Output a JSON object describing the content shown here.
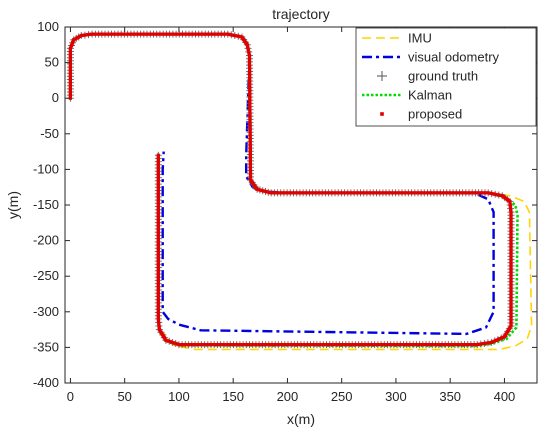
{
  "chart_data": {
    "type": "line",
    "title": "trajectory",
    "xlabel": "x(m)",
    "ylabel": "y(m)",
    "xlim": [
      -5,
      430
    ],
    "ylim": [
      -400,
      100
    ],
    "xticks": [
      0,
      50,
      100,
      150,
      200,
      250,
      300,
      350,
      400
    ],
    "yticks": [
      -400,
      -350,
      -300,
      -250,
      -200,
      -150,
      -100,
      -50,
      0,
      50,
      100
    ],
    "grid": false,
    "legend_position": "top-right",
    "series": [
      {
        "name": "IMU",
        "color": "#FFD400",
        "style": "dashed",
        "x": [
          0,
          0,
          3,
          10,
          20,
          145,
          158,
          163,
          165,
          166,
          172,
          185,
          385,
          405,
          418,
          423,
          425,
          421,
          410,
          395,
          115,
          95,
          86
        ],
        "y": [
          0,
          70,
          82,
          88,
          90,
          90,
          86,
          75,
          60,
          -115,
          -128,
          -133,
          -133,
          -137,
          -145,
          -160,
          -320,
          -338,
          -348,
          -353,
          -353,
          -347,
          -330
        ]
      },
      {
        "name": "visual odometry",
        "color": "#0000E0",
        "style": "dashdot",
        "x": [
          0,
          0,
          3,
          10,
          20,
          145,
          158,
          163,
          165,
          162,
          162,
          168,
          180,
          200,
          372,
          385,
          390,
          390,
          383,
          365,
          120,
          100,
          90,
          85,
          85,
          86
        ],
        "y": [
          0,
          70,
          82,
          88,
          90,
          90,
          86,
          75,
          60,
          -80,
          -110,
          -125,
          -131,
          -133,
          -133,
          -142,
          -160,
          -300,
          -322,
          -331,
          -326,
          -318,
          -310,
          -300,
          -100,
          -75
        ]
      },
      {
        "name": "ground truth",
        "color": "#707070",
        "style": "plus",
        "x": [
          0,
          0,
          3,
          10,
          20,
          145,
          158,
          163,
          165,
          166,
          172,
          185,
          385,
          398,
          405,
          406,
          406,
          400,
          388,
          375,
          100,
          88,
          82,
          81,
          81
        ],
        "y": [
          0,
          70,
          82,
          88,
          90,
          90,
          86,
          75,
          60,
          -115,
          -128,
          -133,
          -133,
          -137,
          -145,
          -160,
          -320,
          -335,
          -343,
          -346,
          -346,
          -340,
          -325,
          -310,
          -80
        ]
      },
      {
        "name": "Kalman",
        "color": "#00DD00",
        "style": "dotted",
        "x": [
          0,
          0,
          3,
          10,
          20,
          145,
          158,
          163,
          165,
          166,
          172,
          185,
          385,
          400,
          410,
          412,
          411,
          402,
          388,
          375,
          100,
          88,
          82,
          81,
          81
        ],
        "y": [
          0,
          70,
          82,
          88,
          90,
          90,
          86,
          75,
          60,
          -115,
          -128,
          -133,
          -133,
          -139,
          -150,
          -165,
          -322,
          -338,
          -345,
          -348,
          -347,
          -341,
          -326,
          -310,
          -80
        ]
      },
      {
        "name": "proposed",
        "color": "#E00000",
        "style": "markers",
        "x": [
          0,
          0,
          3,
          10,
          20,
          145,
          158,
          163,
          165,
          166,
          172,
          185,
          385,
          398,
          405,
          406,
          406,
          400,
          388,
          375,
          100,
          88,
          82,
          81,
          81
        ],
        "y": [
          0,
          70,
          82,
          88,
          90,
          90,
          86,
          75,
          60,
          -115,
          -128,
          -133,
          -133,
          -137,
          -145,
          -160,
          -320,
          -335,
          -343,
          -346,
          -346,
          -340,
          -325,
          -310,
          -80
        ]
      }
    ]
  }
}
